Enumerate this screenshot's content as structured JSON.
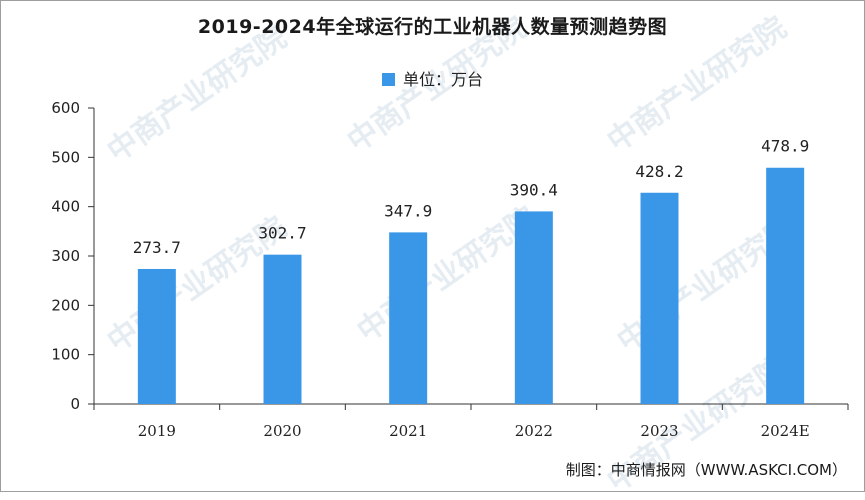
{
  "title": "2019-2024年全球运行的工业机器人数量预测趋势图",
  "legend": {
    "label": "单位：万台",
    "color": "#3a97e8"
  },
  "source": "制图：中商情报网（WWW.ASKCI.COM）",
  "watermark": "中商产业研究院",
  "chart_data": {
    "type": "bar",
    "title": "2019-2024年全球运行的工业机器人数量预测趋势图",
    "categories": [
      "2019",
      "2020",
      "2021",
      "2022",
      "2023",
      "2024E"
    ],
    "series": [
      {
        "name": "单位：万台",
        "values": [
          273.7,
          302.7,
          347.9,
          390.4,
          428.2,
          478.9
        ]
      }
    ],
    "data_labels": [
      "273.7",
      "302.7",
      "347.9",
      "390.4",
      "428.2",
      "478.9"
    ],
    "yticks": [
      "0",
      "100",
      "200",
      "300",
      "400",
      "500",
      "600"
    ],
    "ylim": [
      0,
      600
    ],
    "xlabel": "",
    "ylabel": "",
    "grid": false,
    "legend_position": "top-center",
    "bar_color": "#3a97e8"
  }
}
